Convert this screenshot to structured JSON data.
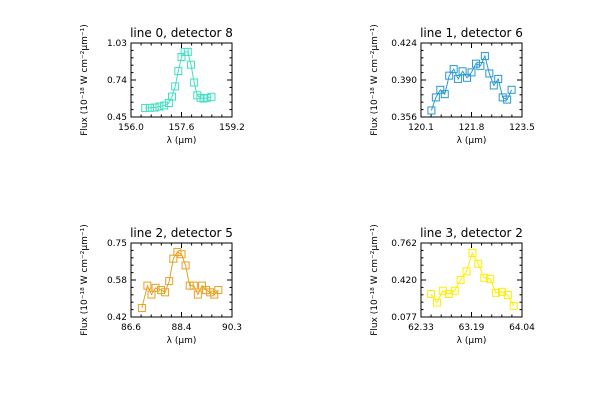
{
  "chart_data": [
    {
      "type": "line",
      "title": "line 0, detector 8",
      "xlabel": "λ (μm)",
      "ylabel": "Flux (10⁻¹⁸ W cm⁻²μm⁻¹)",
      "xlim": [
        156.0,
        159.2
      ],
      "ylim": [
        0.45,
        1.03
      ],
      "x_tick_labels": [
        "156.0",
        "157.6",
        "159.2"
      ],
      "y_tick_labels": [
        "0.45",
        "0.74",
        "1.03"
      ],
      "grid": false,
      "color": "#40e0c0",
      "marker": "square",
      "series": [
        {
          "x": [
            156.45,
            156.6,
            156.75,
            156.9,
            157.05,
            157.2,
            157.3,
            157.4,
            157.5,
            157.6,
            157.7,
            157.8,
            157.9,
            158.0,
            158.1,
            158.2,
            158.3,
            158.4,
            158.55
          ],
          "y": [
            0.52,
            0.522,
            0.524,
            0.532,
            0.54,
            0.56,
            0.61,
            0.69,
            0.81,
            0.92,
            0.96,
            0.96,
            0.86,
            0.72,
            0.62,
            0.6,
            0.595,
            0.6,
            0.608
          ]
        }
      ]
    },
    {
      "type": "line",
      "title": "line 1, detector 6",
      "xlabel": "λ (μm)",
      "ylabel": "Flux (10⁻¹⁸ W cm⁻²μm⁻¹)",
      "xlim": [
        120.1,
        123.5
      ],
      "ylim": [
        0.356,
        0.424
      ],
      "x_tick_labels": [
        "120.1",
        "121.8",
        "123.5"
      ],
      "y_tick_labels": [
        "0.356",
        "0.390",
        "0.424"
      ],
      "grid": false,
      "color": "#2898d0",
      "marker": "square",
      "series": [
        {
          "x": [
            120.45,
            120.6,
            120.75,
            120.9,
            121.05,
            121.2,
            121.35,
            121.5,
            121.65,
            121.8,
            121.95,
            122.1,
            122.25,
            122.4,
            122.55,
            122.7,
            122.85,
            123.0,
            123.15
          ],
          "y": [
            0.362,
            0.374,
            0.381,
            0.377,
            0.394,
            0.4,
            0.391,
            0.398,
            0.392,
            0.397,
            0.405,
            0.403,
            0.412,
            0.396,
            0.385,
            0.391,
            0.374,
            0.372,
            0.381
          ]
        }
      ]
    },
    {
      "type": "line",
      "title": "line 2, detector 5",
      "xlabel": "λ (μm)",
      "ylabel": "Flux (10⁻¹⁸ W cm⁻²μm⁻¹)",
      "xlim": [
        86.6,
        90.3
      ],
      "ylim": [
        0.42,
        0.75
      ],
      "x_tick_labels": [
        "86.6",
        "88.4",
        "90.3"
      ],
      "y_tick_labels": [
        "0.42",
        "0.58",
        "0.75"
      ],
      "grid": false,
      "color": "#e8a020",
      "marker": "square",
      "series": [
        {
          "x": [
            87.0,
            87.2,
            87.35,
            87.5,
            87.7,
            87.85,
            88.0,
            88.15,
            88.3,
            88.45,
            88.6,
            88.75,
            88.9,
            89.05,
            89.2,
            89.35,
            89.5,
            89.65,
            89.8
          ],
          "y": [
            0.46,
            0.56,
            0.52,
            0.55,
            0.54,
            0.53,
            0.58,
            0.68,
            0.71,
            0.7,
            0.65,
            0.56,
            0.56,
            0.52,
            0.56,
            0.54,
            0.53,
            0.52,
            0.54
          ]
        }
      ]
    },
    {
      "type": "line",
      "title": "line 3, detector 2",
      "xlabel": "λ (μm)",
      "ylabel": "Flux (10⁻¹⁸ W cm⁻²μm⁻¹)",
      "xlim": [
        62.33,
        64.04
      ],
      "ylim": [
        0.077,
        0.762
      ],
      "x_tick_labels": [
        "62.33",
        "63.19",
        "64.04"
      ],
      "y_tick_labels": [
        "0.077",
        "0.420",
        "0.762"
      ],
      "grid": false,
      "color": "#ffee00",
      "marker": "square",
      "series": [
        {
          "x": [
            62.5,
            62.6,
            62.7,
            62.8,
            62.9,
            63.0,
            63.1,
            63.2,
            63.3,
            63.4,
            63.5,
            63.6,
            63.7,
            63.8,
            63.9
          ],
          "y": [
            0.29,
            0.21,
            0.32,
            0.29,
            0.32,
            0.42,
            0.5,
            0.67,
            0.57,
            0.44,
            0.43,
            0.3,
            0.31,
            0.28,
            0.18
          ]
        }
      ]
    }
  ]
}
